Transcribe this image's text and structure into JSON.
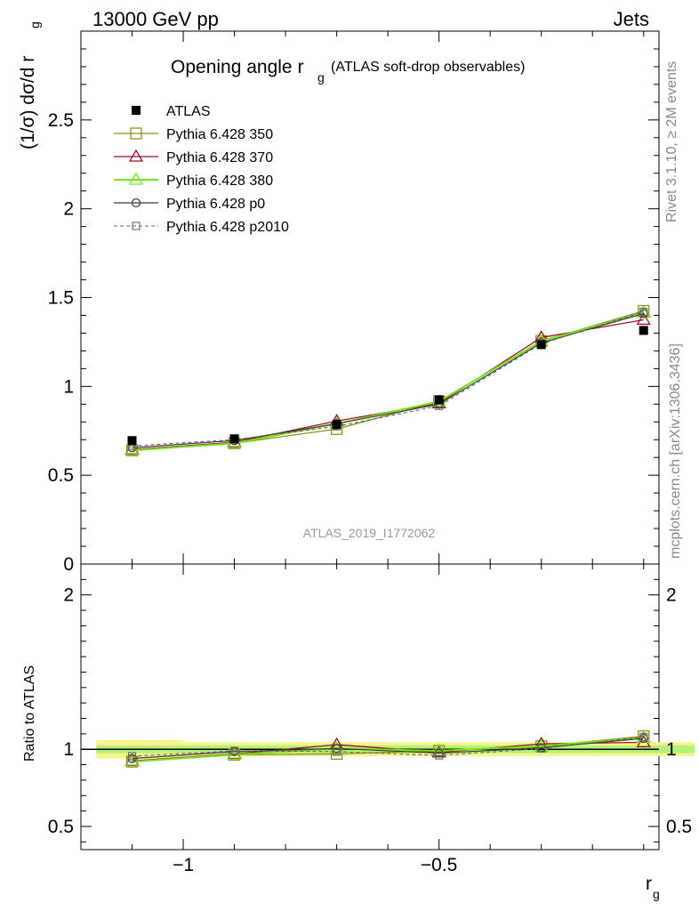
{
  "header": {
    "left": "13000 GeV pp",
    "right": "Jets"
  },
  "title": {
    "main": "Opening angle r",
    "main_sub": "g",
    "extra": "(ATLAS soft-drop observables)"
  },
  "side_labels": {
    "rivet": "Rivet 3.1.10, ≥ 2M events",
    "mcplots": "mcplots.cern.ch [arXiv:1306.3436]"
  },
  "watermark": "ATLAS_2019_I1772062",
  "ylabel_main": "(1/σ) dσ/d r",
  "ylabel_main_sub": "g",
  "ylabel_ratio": "Ratio to ATLAS",
  "xlabel": "r",
  "xlabel_sub": "g",
  "colors": {
    "data": "#000000",
    "p350": "#8f8f1f",
    "p370": "#9e1022",
    "p380": "#74e31c",
    "p0": "#3a3a3a",
    "p2010": "#666666",
    "band_yellow": "#f5f58c",
    "band_green": "#b7f07a"
  },
  "chart_data": [
    {
      "type": "line",
      "panel": "main",
      "title": "Opening angle r g (ATLAS soft-drop observables)",
      "xlabel": "r g",
      "ylabel": "(1/σ) dσ/d r g",
      "xlim": [
        -1.2,
        -0.07
      ],
      "ylim": [
        0,
        3.0
      ],
      "x_ticks": [
        "−1",
        "−0.5"
      ],
      "x_tick_values": [
        -1,
        -0.5
      ],
      "y_ticks": [
        "0",
        "0.5",
        "1",
        "1.5",
        "2",
        "2.5"
      ],
      "y_tick_values": [
        0,
        0.5,
        1,
        1.5,
        2,
        2.5
      ],
      "legend_position": "top-left",
      "x": [
        -1.1,
        -0.9,
        -0.7,
        -0.5,
        -0.3,
        -0.1
      ],
      "series": [
        {
          "key": "data",
          "name": "ATLAS",
          "values": [
            0.695,
            0.705,
            0.785,
            0.925,
            1.235,
            1.315
          ]
        },
        {
          "key": "p350",
          "name": "Pythia 6.428 350",
          "values": [
            0.64,
            0.68,
            0.76,
            0.915,
            1.255,
            1.425
          ]
        },
        {
          "key": "p370",
          "name": "Pythia 6.428 370",
          "values": [
            0.645,
            0.685,
            0.805,
            0.905,
            1.275,
            1.375
          ]
        },
        {
          "key": "p380",
          "name": "Pythia 6.428 380",
          "values": [
            0.64,
            0.68,
            0.79,
            0.915,
            1.255,
            1.415
          ]
        },
        {
          "key": "p0",
          "name": "Pythia 6.428 p0",
          "values": [
            0.655,
            0.695,
            0.79,
            0.9,
            1.245,
            1.41
          ]
        },
        {
          "key": "p2010",
          "name": "Pythia 6.428 p2010",
          "values": [
            0.665,
            0.7,
            0.775,
            0.89,
            1.24,
            1.42
          ]
        }
      ]
    },
    {
      "type": "line",
      "panel": "ratio",
      "ylabel": "Ratio to ATLAS",
      "xlabel": "r g",
      "xlim": [
        -1.2,
        -0.07
      ],
      "ylim": [
        0.35,
        2.2
      ],
      "y_ticks": [
        "0.5",
        "1",
        "2"
      ],
      "y_tick_values": [
        0.5,
        1,
        2
      ],
      "x_ticks": [
        "−1",
        "−0.5"
      ],
      "x_tick_values": [
        -1,
        -0.5
      ],
      "x": [
        -1.1,
        -0.9,
        -0.7,
        -0.5,
        -0.3,
        -0.1
      ],
      "band_yellow_halfwidth": 0.045,
      "band_green_halfwidth": 0.025,
      "band_first_bin_yellow_halfwidth": 0.06,
      "series": [
        {
          "key": "p350",
          "name": "Pythia 6.428 350",
          "values": [
            0.92,
            0.965,
            0.97,
            0.99,
            1.02,
            1.085
          ]
        },
        {
          "key": "p370",
          "name": "Pythia 6.428 370",
          "values": [
            0.925,
            0.97,
            1.03,
            0.98,
            1.035,
            1.045
          ]
        },
        {
          "key": "p380",
          "name": "Pythia 6.428 380",
          "values": [
            0.92,
            0.965,
            1.005,
            0.99,
            1.02,
            1.075
          ]
        },
        {
          "key": "p0",
          "name": "Pythia 6.428 p0",
          "values": [
            0.94,
            0.985,
            1.005,
            0.975,
            1.01,
            1.07
          ]
        },
        {
          "key": "p2010",
          "name": "Pythia 6.428 p2010",
          "values": [
            0.955,
            0.99,
            0.985,
            0.96,
            1.005,
            1.08
          ]
        }
      ]
    }
  ]
}
